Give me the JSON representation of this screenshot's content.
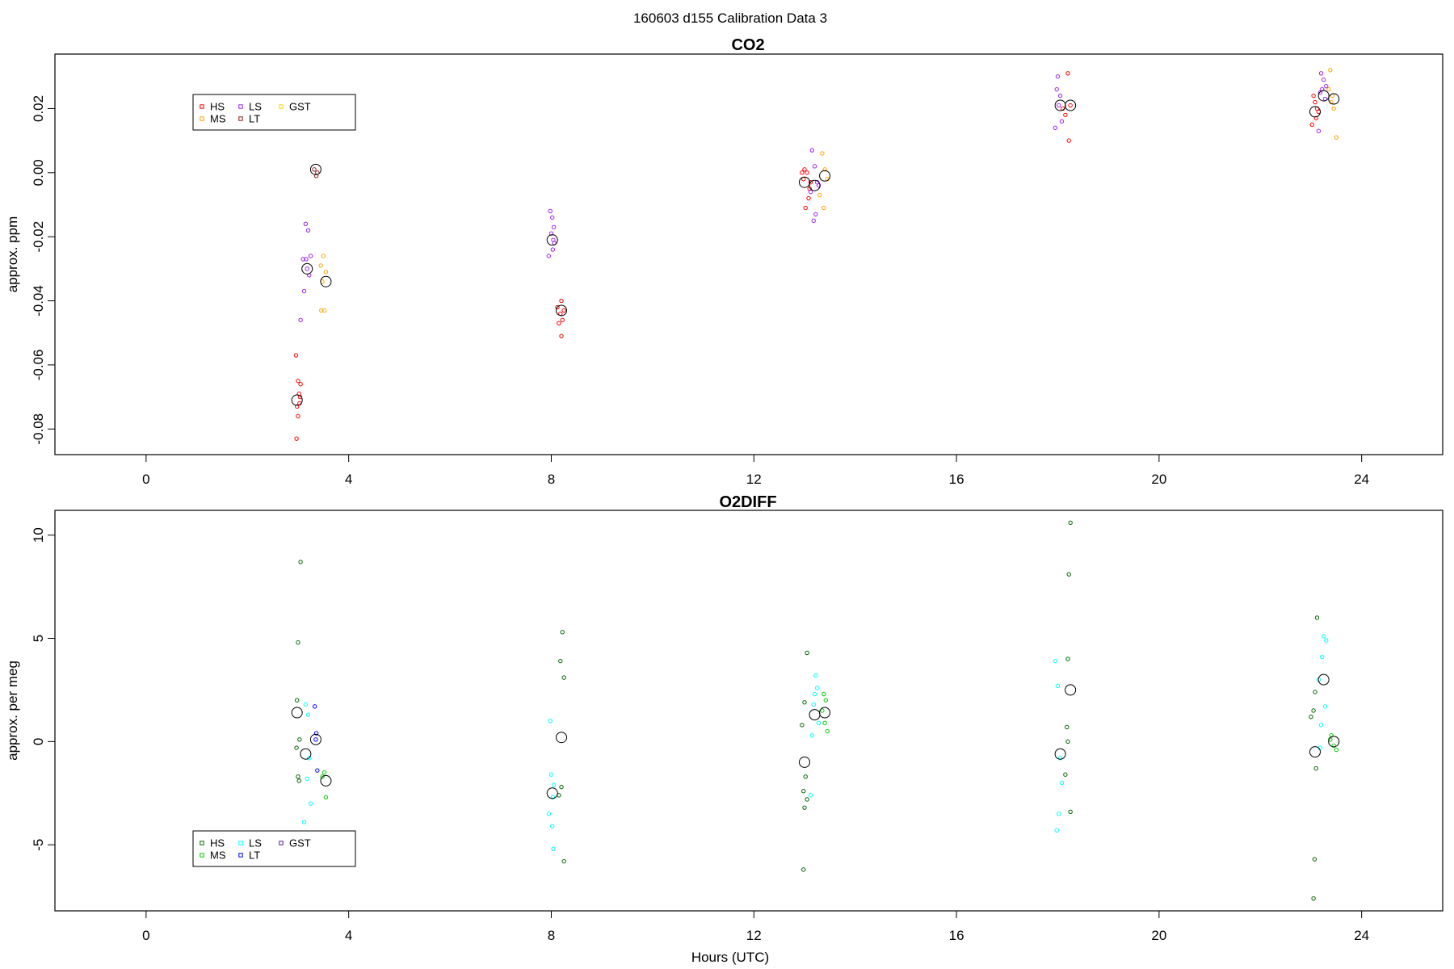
{
  "figure": {
    "title": "160603   d155   Calibration Data 3",
    "xlabel": "Hours (UTC)"
  },
  "chart_data": [
    {
      "type": "scatter",
      "title": "CO2",
      "xlabel": "",
      "ylabel": "approx. ppm",
      "xlim": [
        -1.8,
        25.6
      ],
      "ylim": [
        -0.088,
        0.037
      ],
      "xticks": [
        0,
        4,
        8,
        12,
        16,
        20,
        24
      ],
      "yticks": [
        -0.08,
        -0.06,
        -0.04,
        -0.02,
        0.0,
        0.02
      ],
      "ytick_labels": [
        "-0.08",
        "-0.06",
        "-0.04",
        "-0.02",
        "0.00",
        "0.02"
      ],
      "legend": {
        "position": "top-left",
        "columns": [
          [
            "HS",
            "MS"
          ],
          [
            "LS",
            "LT"
          ],
          [
            "GST"
          ]
        ]
      },
      "grid": false,
      "series": [
        {
          "name": "HS",
          "color": "#ff0000",
          "x": [
            2.96,
            3.0,
            3.05,
            2.98,
            3.03,
            3.0,
            2.97,
            3.02,
            3.04,
            8.12,
            8.18,
            8.2,
            8.22,
            8.15,
            8.2,
            8.25,
            13.0,
            12.95,
            13.05,
            13.1,
            13.02,
            13.08,
            13.12,
            12.98,
            18.1,
            18.2,
            18.15,
            18.25,
            18.22,
            23.05,
            23.12,
            23.1,
            23.15,
            23.08,
            23.02
          ],
          "y": [
            -0.057,
            -0.065,
            -0.066,
            -0.073,
            -0.072,
            -0.076,
            -0.083,
            -0.069,
            -0.07,
            -0.042,
            -0.044,
            -0.04,
            -0.046,
            -0.047,
            -0.051,
            -0.043,
            0.001,
            0.0,
            0.0,
            -0.005,
            -0.011,
            -0.008,
            -0.003,
            -0.002,
            0.02,
            0.031,
            0.018,
            0.021,
            0.01,
            0.024,
            0.02,
            0.017,
            0.019,
            0.022,
            0.015
          ]
        },
        {
          "name": "MS",
          "color": "#ffa500",
          "x": [
            3.5,
            3.45,
            3.55,
            3.48,
            3.52,
            3.46,
            13.35,
            13.4,
            13.45,
            13.3,
            13.38,
            23.38,
            23.42,
            23.45,
            23.35,
            23.5,
            23.4
          ],
          "y": [
            -0.026,
            -0.029,
            -0.031,
            -0.034,
            -0.043,
            -0.043,
            0.006,
            0.001,
            -0.002,
            -0.007,
            -0.011,
            0.032,
            0.024,
            0.02,
            0.026,
            0.011,
            0.022
          ]
        },
        {
          "name": "LS",
          "color": "#a020f0",
          "x": [
            3.15,
            3.2,
            3.25,
            3.1,
            3.18,
            3.22,
            3.12,
            3.16,
            3.05,
            7.98,
            8.02,
            8.05,
            8.0,
            8.06,
            8.03,
            7.95,
            8.04,
            13.15,
            13.2,
            13.25,
            13.22,
            13.18,
            13.28,
            13.12,
            17.95,
            18.02,
            18.05,
            17.98,
            18.0,
            18.08,
            23.2,
            23.25,
            23.3,
            23.22,
            23.18,
            23.28,
            23.15
          ],
          "y": [
            -0.016,
            -0.018,
            -0.026,
            -0.027,
            -0.03,
            -0.032,
            -0.037,
            -0.027,
            -0.046,
            -0.012,
            -0.014,
            -0.017,
            -0.019,
            -0.022,
            -0.024,
            -0.026,
            -0.021,
            0.007,
            0.002,
            -0.003,
            -0.013,
            -0.015,
            -0.004,
            -0.006,
            0.014,
            0.021,
            0.024,
            0.026,
            0.03,
            0.016,
            0.031,
            0.029,
            0.027,
            0.026,
            0.025,
            0.023,
            0.013
          ]
        },
        {
          "name": "LT",
          "color": "#8b1a1a",
          "x": [
            3.32,
            3.38,
            3.36
          ],
          "y": [
            0.001,
            0.0,
            -0.001
          ]
        },
        {
          "name": "GST",
          "color": "#ffd700",
          "x": [],
          "y": []
        }
      ],
      "means": {
        "x": [
          2.98,
          3.18,
          3.35,
          3.55,
          8.02,
          8.2,
          13.0,
          13.2,
          13.4,
          18.05,
          18.25,
          23.08,
          23.25,
          23.45
        ],
        "y": [
          -0.071,
          -0.03,
          0.001,
          -0.034,
          -0.021,
          -0.043,
          -0.003,
          -0.004,
          -0.001,
          0.021,
          0.021,
          0.019,
          0.024,
          0.023
        ]
      }
    },
    {
      "type": "scatter",
      "title": "O2DIFF",
      "xlabel": "Hours (UTC)",
      "ylabel": "approx. per meg",
      "xlim": [
        -1.8,
        25.6
      ],
      "ylim": [
        -8.2,
        11.2
      ],
      "xticks": [
        0,
        4,
        8,
        12,
        16,
        20,
        24
      ],
      "yticks": [
        -5,
        0,
        5,
        10
      ],
      "ytick_labels": [
        "-5",
        "0",
        "5",
        "10"
      ],
      "legend": {
        "position": "bottom-left",
        "columns": [
          [
            "HS",
            "MS"
          ],
          [
            "LS",
            "LT"
          ],
          [
            "GST"
          ]
        ]
      },
      "grid": false,
      "series": [
        {
          "name": "HS",
          "color": "#006400",
          "x": [
            3.05,
            3.0,
            2.98,
            3.03,
            2.97,
            3.0,
            3.02,
            8.22,
            8.18,
            8.25,
            8.2,
            8.15,
            8.25,
            13.05,
            13.0,
            12.95,
            13.02,
            12.98,
            13.05,
            13.0,
            12.98,
            18.25,
            18.22,
            18.2,
            18.18,
            18.15,
            18.25,
            18.2,
            23.12,
            23.08,
            23.05,
            23.0,
            23.1,
            23.07,
            23.05
          ],
          "y": [
            8.7,
            4.8,
            2.0,
            0.1,
            -0.3,
            -1.7,
            -1.9,
            5.3,
            3.9,
            3.1,
            -2.2,
            -2.6,
            -5.8,
            4.3,
            1.9,
            0.8,
            -1.7,
            -2.4,
            -2.8,
            -3.2,
            -6.2,
            10.6,
            8.1,
            4.0,
            0.7,
            -1.6,
            -3.4,
            0.0,
            6.0,
            2.4,
            1.5,
            1.2,
            -1.3,
            -5.7,
            -7.6
          ]
        },
        {
          "name": "MS",
          "color": "#00cd00",
          "x": [
            3.52,
            3.48,
            3.55,
            13.38,
            13.42,
            13.35,
            13.4,
            13.45,
            23.4,
            23.45,
            23.38,
            23.5
          ],
          "y": [
            -1.5,
            -1.7,
            -2.7,
            2.3,
            2.0,
            1.5,
            0.9,
            0.5,
            0.3,
            -0.2,
            0.1,
            -0.4
          ]
        },
        {
          "name": "LS",
          "color": "#00ffff",
          "x": [
            3.15,
            3.2,
            3.22,
            3.18,
            3.25,
            3.12,
            7.98,
            8.0,
            8.05,
            8.02,
            7.95,
            8.04,
            8.03,
            13.22,
            13.25,
            13.2,
            13.18,
            13.28,
            13.15,
            13.12,
            17.95,
            18.0,
            18.05,
            18.02,
            17.98,
            18.08,
            23.25,
            23.3,
            23.22,
            23.28,
            23.2,
            23.18,
            23.15
          ],
          "y": [
            1.8,
            1.3,
            -0.8,
            -1.8,
            -3.0,
            -3.9,
            1.0,
            -1.6,
            -2.1,
            -4.1,
            -3.5,
            -5.2,
            -2.7,
            3.2,
            2.6,
            2.3,
            1.8,
            0.9,
            0.3,
            -2.6,
            3.9,
            2.7,
            -0.8,
            -3.5,
            -4.3,
            -2.0,
            5.1,
            4.9,
            4.1,
            1.7,
            0.8,
            -0.3,
            3.0
          ]
        },
        {
          "name": "LT",
          "color": "#0000ff",
          "x": [
            3.33,
            3.36,
            3.38,
            3.35
          ],
          "y": [
            1.7,
            0.4,
            -1.4,
            0.1
          ]
        },
        {
          "name": "GST",
          "color": "#551a8b",
          "x": [],
          "y": []
        }
      ],
      "means": {
        "x": [
          2.98,
          3.15,
          3.35,
          3.55,
          8.02,
          8.2,
          13.0,
          13.2,
          13.4,
          18.05,
          18.25,
          23.08,
          23.25,
          23.45
        ],
        "y": [
          1.4,
          -0.6,
          0.1,
          -1.9,
          -2.5,
          0.2,
          -1.0,
          1.3,
          1.4,
          -0.6,
          2.5,
          -0.5,
          3.0,
          0.0
        ]
      }
    }
  ]
}
